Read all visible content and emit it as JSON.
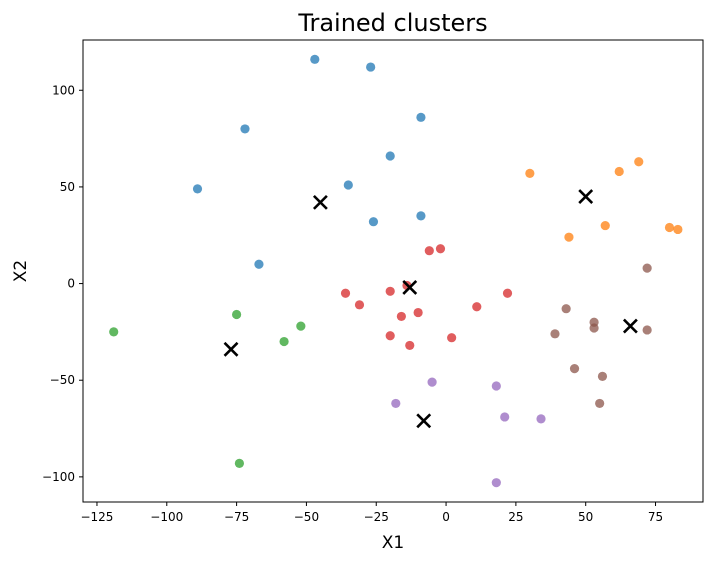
{
  "chart_data": {
    "type": "scatter",
    "title": "Trained clusters",
    "xlabel": "X1",
    "ylabel": "X2",
    "xlim": [
      -130,
      92
    ],
    "ylim": [
      -113,
      126
    ],
    "xticks": [
      -125,
      -100,
      -75,
      -50,
      -25,
      0,
      25,
      50,
      75
    ],
    "yticks": [
      -100,
      -50,
      0,
      50,
      100
    ],
    "grid": false,
    "series": [
      {
        "color": "#1f77b4",
        "points": [
          [
            -47,
            116
          ],
          [
            -27,
            112
          ],
          [
            -72,
            80
          ],
          [
            -9,
            86
          ],
          [
            -20,
            66
          ],
          [
            -89,
            49
          ],
          [
            -35,
            51
          ],
          [
            -26,
            32
          ],
          [
            -9,
            35
          ],
          [
            -67,
            10
          ]
        ]
      },
      {
        "color": "#ff7f0e",
        "points": [
          [
            30,
            57
          ],
          [
            62,
            58
          ],
          [
            69,
            63
          ],
          [
            44,
            24
          ],
          [
            57,
            30
          ],
          [
            80,
            29
          ],
          [
            83,
            28
          ]
        ]
      },
      {
        "color": "#2ca02c",
        "points": [
          [
            -119,
            -25
          ],
          [
            -75,
            -16
          ],
          [
            -52,
            -22
          ],
          [
            -58,
            -30
          ],
          [
            -74,
            -93
          ]
        ]
      },
      {
        "color": "#d62728",
        "points": [
          [
            -36,
            -5
          ],
          [
            -31,
            -11
          ],
          [
            -20,
            -4
          ],
          [
            -14,
            -1
          ],
          [
            -16,
            -17
          ],
          [
            -10,
            -15
          ],
          [
            -6,
            17
          ],
          [
            -2,
            18
          ],
          [
            11,
            -12
          ],
          [
            22,
            -5
          ],
          [
            -20,
            -27
          ],
          [
            -13,
            -32
          ],
          [
            2,
            -28
          ]
        ]
      },
      {
        "color": "#9467bd",
        "points": [
          [
            -5,
            -51
          ],
          [
            -18,
            -62
          ],
          [
            18,
            -53
          ],
          [
            21,
            -69
          ],
          [
            34,
            -70
          ],
          [
            18,
            -103
          ]
        ]
      },
      {
        "color": "#8c564b",
        "points": [
          [
            72,
            8
          ],
          [
            43,
            -13
          ],
          [
            53,
            -20
          ],
          [
            53,
            -23
          ],
          [
            72,
            -24
          ],
          [
            39,
            -26
          ],
          [
            46,
            -44
          ],
          [
            56,
            -48
          ],
          [
            55,
            -62
          ]
        ]
      }
    ],
    "centroids": [
      [
        -45,
        42
      ],
      [
        -13,
        -2
      ],
      [
        50,
        45
      ],
      [
        66,
        -22
      ],
      [
        -77,
        -34
      ],
      [
        -8,
        -71
      ]
    ],
    "centroid_color": "#000000"
  }
}
